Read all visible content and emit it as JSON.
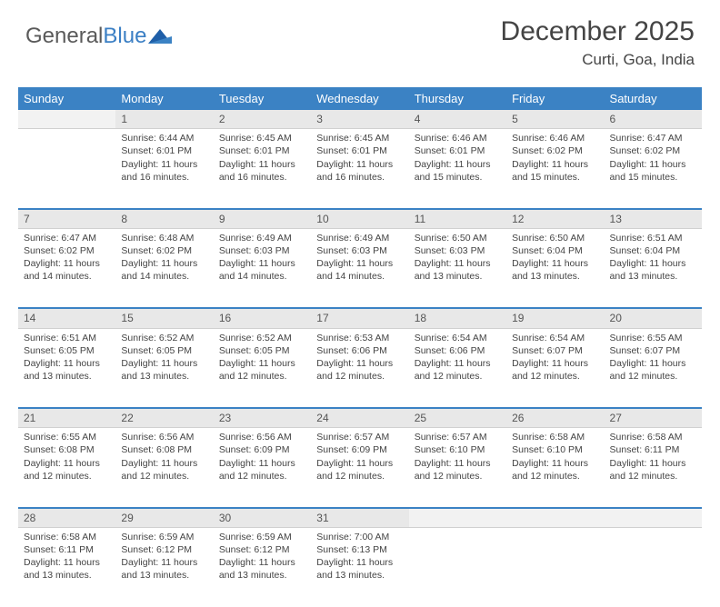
{
  "brand": {
    "part1": "General",
    "part2": "Blue"
  },
  "title": "December 2025",
  "location": "Curti, Goa, India",
  "colors": {
    "header_bg": "#3b82c4",
    "header_text": "#ffffff",
    "daynum_bg": "#e8e8e8",
    "row_divider": "#3b82c4",
    "text": "#444444",
    "logo_gray": "#5a5a5a",
    "logo_blue": "#3b7fc4"
  },
  "days": [
    "Sunday",
    "Monday",
    "Tuesday",
    "Wednesday",
    "Thursday",
    "Friday",
    "Saturday"
  ],
  "weeks": [
    {
      "nums": [
        "",
        "1",
        "2",
        "3",
        "4",
        "5",
        "6"
      ],
      "cells": [
        null,
        {
          "sr": "Sunrise: 6:44 AM",
          "ss": "Sunset: 6:01 PM",
          "d1": "Daylight: 11 hours",
          "d2": "and 16 minutes."
        },
        {
          "sr": "Sunrise: 6:45 AM",
          "ss": "Sunset: 6:01 PM",
          "d1": "Daylight: 11 hours",
          "d2": "and 16 minutes."
        },
        {
          "sr": "Sunrise: 6:45 AM",
          "ss": "Sunset: 6:01 PM",
          "d1": "Daylight: 11 hours",
          "d2": "and 16 minutes."
        },
        {
          "sr": "Sunrise: 6:46 AM",
          "ss": "Sunset: 6:01 PM",
          "d1": "Daylight: 11 hours",
          "d2": "and 15 minutes."
        },
        {
          "sr": "Sunrise: 6:46 AM",
          "ss": "Sunset: 6:02 PM",
          "d1": "Daylight: 11 hours",
          "d2": "and 15 minutes."
        },
        {
          "sr": "Sunrise: 6:47 AM",
          "ss": "Sunset: 6:02 PM",
          "d1": "Daylight: 11 hours",
          "d2": "and 15 minutes."
        }
      ]
    },
    {
      "nums": [
        "7",
        "8",
        "9",
        "10",
        "11",
        "12",
        "13"
      ],
      "cells": [
        {
          "sr": "Sunrise: 6:47 AM",
          "ss": "Sunset: 6:02 PM",
          "d1": "Daylight: 11 hours",
          "d2": "and 14 minutes."
        },
        {
          "sr": "Sunrise: 6:48 AM",
          "ss": "Sunset: 6:02 PM",
          "d1": "Daylight: 11 hours",
          "d2": "and 14 minutes."
        },
        {
          "sr": "Sunrise: 6:49 AM",
          "ss": "Sunset: 6:03 PM",
          "d1": "Daylight: 11 hours",
          "d2": "and 14 minutes."
        },
        {
          "sr": "Sunrise: 6:49 AM",
          "ss": "Sunset: 6:03 PM",
          "d1": "Daylight: 11 hours",
          "d2": "and 14 minutes."
        },
        {
          "sr": "Sunrise: 6:50 AM",
          "ss": "Sunset: 6:03 PM",
          "d1": "Daylight: 11 hours",
          "d2": "and 13 minutes."
        },
        {
          "sr": "Sunrise: 6:50 AM",
          "ss": "Sunset: 6:04 PM",
          "d1": "Daylight: 11 hours",
          "d2": "and 13 minutes."
        },
        {
          "sr": "Sunrise: 6:51 AM",
          "ss": "Sunset: 6:04 PM",
          "d1": "Daylight: 11 hours",
          "d2": "and 13 minutes."
        }
      ]
    },
    {
      "nums": [
        "14",
        "15",
        "16",
        "17",
        "18",
        "19",
        "20"
      ],
      "cells": [
        {
          "sr": "Sunrise: 6:51 AM",
          "ss": "Sunset: 6:05 PM",
          "d1": "Daylight: 11 hours",
          "d2": "and 13 minutes."
        },
        {
          "sr": "Sunrise: 6:52 AM",
          "ss": "Sunset: 6:05 PM",
          "d1": "Daylight: 11 hours",
          "d2": "and 13 minutes."
        },
        {
          "sr": "Sunrise: 6:52 AM",
          "ss": "Sunset: 6:05 PM",
          "d1": "Daylight: 11 hours",
          "d2": "and 12 minutes."
        },
        {
          "sr": "Sunrise: 6:53 AM",
          "ss": "Sunset: 6:06 PM",
          "d1": "Daylight: 11 hours",
          "d2": "and 12 minutes."
        },
        {
          "sr": "Sunrise: 6:54 AM",
          "ss": "Sunset: 6:06 PM",
          "d1": "Daylight: 11 hours",
          "d2": "and 12 minutes."
        },
        {
          "sr": "Sunrise: 6:54 AM",
          "ss": "Sunset: 6:07 PM",
          "d1": "Daylight: 11 hours",
          "d2": "and 12 minutes."
        },
        {
          "sr": "Sunrise: 6:55 AM",
          "ss": "Sunset: 6:07 PM",
          "d1": "Daylight: 11 hours",
          "d2": "and 12 minutes."
        }
      ]
    },
    {
      "nums": [
        "21",
        "22",
        "23",
        "24",
        "25",
        "26",
        "27"
      ],
      "cells": [
        {
          "sr": "Sunrise: 6:55 AM",
          "ss": "Sunset: 6:08 PM",
          "d1": "Daylight: 11 hours",
          "d2": "and 12 minutes."
        },
        {
          "sr": "Sunrise: 6:56 AM",
          "ss": "Sunset: 6:08 PM",
          "d1": "Daylight: 11 hours",
          "d2": "and 12 minutes."
        },
        {
          "sr": "Sunrise: 6:56 AM",
          "ss": "Sunset: 6:09 PM",
          "d1": "Daylight: 11 hours",
          "d2": "and 12 minutes."
        },
        {
          "sr": "Sunrise: 6:57 AM",
          "ss": "Sunset: 6:09 PM",
          "d1": "Daylight: 11 hours",
          "d2": "and 12 minutes."
        },
        {
          "sr": "Sunrise: 6:57 AM",
          "ss": "Sunset: 6:10 PM",
          "d1": "Daylight: 11 hours",
          "d2": "and 12 minutes."
        },
        {
          "sr": "Sunrise: 6:58 AM",
          "ss": "Sunset: 6:10 PM",
          "d1": "Daylight: 11 hours",
          "d2": "and 12 minutes."
        },
        {
          "sr": "Sunrise: 6:58 AM",
          "ss": "Sunset: 6:11 PM",
          "d1": "Daylight: 11 hours",
          "d2": "and 12 minutes."
        }
      ]
    },
    {
      "nums": [
        "28",
        "29",
        "30",
        "31",
        "",
        "",
        ""
      ],
      "cells": [
        {
          "sr": "Sunrise: 6:58 AM",
          "ss": "Sunset: 6:11 PM",
          "d1": "Daylight: 11 hours",
          "d2": "and 13 minutes."
        },
        {
          "sr": "Sunrise: 6:59 AM",
          "ss": "Sunset: 6:12 PM",
          "d1": "Daylight: 11 hours",
          "d2": "and 13 minutes."
        },
        {
          "sr": "Sunrise: 6:59 AM",
          "ss": "Sunset: 6:12 PM",
          "d1": "Daylight: 11 hours",
          "d2": "and 13 minutes."
        },
        {
          "sr": "Sunrise: 7:00 AM",
          "ss": "Sunset: 6:13 PM",
          "d1": "Daylight: 11 hours",
          "d2": "and 13 minutes."
        },
        null,
        null,
        null
      ]
    }
  ]
}
